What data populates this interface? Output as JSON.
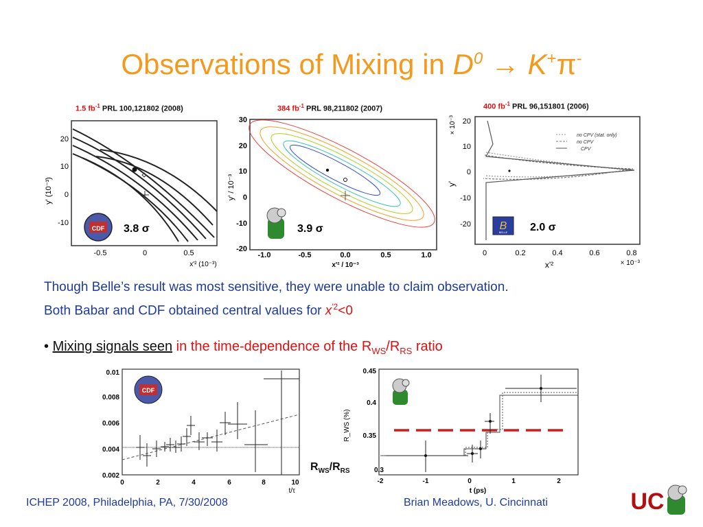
{
  "title": {
    "prefix": "Observations of Mixing in ",
    "D": "D",
    "D_sup": "0",
    "arrow": "→",
    "K": "K",
    "K_sup": "+",
    "pi": "π",
    "pi_sup": "-"
  },
  "panels": {
    "p1": {
      "lum": "1.5 fb",
      "lum_exp": "-1",
      "ref": "PRL 100,121802 (2008)",
      "significance": "3.8 σ",
      "ylabel": "y' (10⁻³)",
      "xlabel": "x'² (10⁻³)",
      "xticks": [
        "-0.5",
        "0",
        "0.5"
      ],
      "yticks": [
        "20",
        "10",
        "0",
        "-10"
      ]
    },
    "p2": {
      "lum": "384 fb",
      "lum_exp": "-1",
      "ref": "PRL 98,211802 (2007)",
      "significance": "3.9 σ",
      "ylabel": "y' / 10⁻³",
      "xlabel": "x'² / 10⁻³",
      "xticks": [
        "-1.0",
        "-0.5",
        "0.0",
        "0.5",
        "1.0"
      ],
      "yticks": [
        "30",
        "20",
        "10",
        "0",
        "-10",
        "-20"
      ]
    },
    "p3": {
      "lum": "400 fb",
      "lum_exp": "-1",
      "ref": "PRL 96,151801 (2006)",
      "significance": "2.0 σ",
      "ylabel": "y'",
      "xlabel": "x'²",
      "yscale": "× 10⁻³",
      "xscale": "× 10⁻³",
      "xticks": [
        "0",
        "0.2",
        "0.4",
        "0.6",
        "0.8"
      ],
      "yticks": [
        "20",
        "10",
        "0",
        "-10",
        "-20"
      ],
      "legend": [
        "no CPV (stat. only)",
        "no CPV",
        "CPV"
      ]
    }
  },
  "body": {
    "line1": "Though Belle’s result was most sensitive, they were unable to claim observation.",
    "line2_prefix": "Both Babar and CDF obtained central values for ",
    "line2_var": "x",
    "line2_sup": "′2",
    "line2_suffix": "<0"
  },
  "bullet": {
    "marker": "•",
    "underlined": "Mixing signals seen",
    "text_prefix": "in the time-dependence of the R",
    "sub1": "WS",
    "slash": "/R",
    "sub2": "RS",
    "text_suffix": " ratio"
  },
  "plot_left": {
    "xlabel": "t/τ",
    "yticks": [
      "0.01",
      "0.008",
      "0.006",
      "0.004",
      "0.002"
    ],
    "xticks": [
      "0",
      "2",
      "4",
      "6",
      "8",
      "10"
    ]
  },
  "plot_right": {
    "ylabel": "R_WS (%)",
    "xlabel": "t (ps)",
    "yticks": [
      "0.45",
      "0.4",
      "0.35",
      "0.3"
    ],
    "xticks": [
      "-2",
      "-1",
      "0",
      "1",
      "2"
    ],
    "corner": "0.3"
  },
  "ratio_label": {
    "R": "R",
    "sub1": "WS",
    "slash": "/R",
    "sub2": "RS"
  },
  "footer": {
    "left": "ICHEP 2008, Philadelphia, PA, 7/30/2008",
    "right": "Brian Meadows, U. Cincinnati"
  },
  "logos": {
    "cdf": "CDF",
    "belle": "BELLE",
    "babar": "BaBar",
    "uc": "UC"
  },
  "colors": {
    "title": "#f39a1e",
    "body": "#1e3a9a",
    "accent_red": "#e01010"
  }
}
